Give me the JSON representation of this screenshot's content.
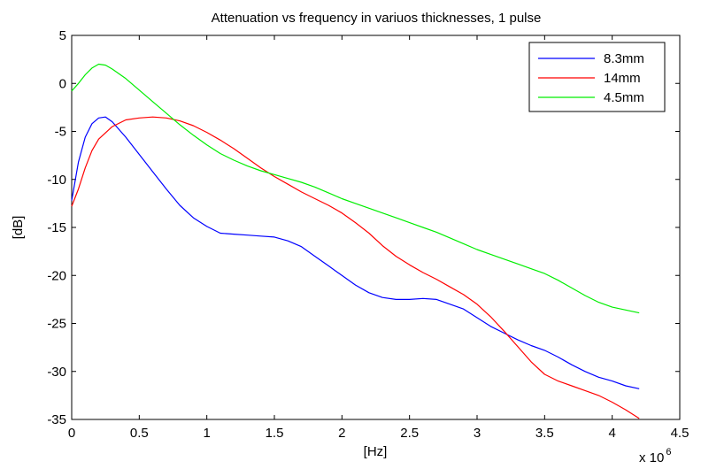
{
  "chart_data": {
    "type": "line",
    "title": "Attenuation vs frequency in variuos thicknesses, 1 pulse",
    "xlabel": "[Hz]",
    "ylabel": "[dB]",
    "x_multiplier": "x 10",
    "x_multiplier_exponent": "6",
    "xlim": [
      0,
      4.5
    ],
    "ylim": [
      -35,
      5
    ],
    "xticks": [
      "0",
      "0.5",
      "1",
      "1.5",
      "2",
      "2.5",
      "3",
      "3.5",
      "4",
      "4.5"
    ],
    "yticks": [
      "5",
      "0",
      "-5",
      "-10",
      "-15",
      "-20",
      "-25",
      "-30",
      "-35"
    ],
    "grid": false,
    "legend_position": "top-right",
    "series": [
      {
        "name": "8.3mm",
        "color": "#0000ff",
        "x": [
          0,
          0.05,
          0.1,
          0.15,
          0.2,
          0.25,
          0.3,
          0.4,
          0.5,
          0.6,
          0.7,
          0.8,
          0.9,
          1.0,
          1.1,
          1.2,
          1.3,
          1.4,
          1.5,
          1.6,
          1.7,
          1.8,
          1.9,
          2.0,
          2.1,
          2.2,
          2.3,
          2.4,
          2.5,
          2.6,
          2.7,
          2.8,
          2.9,
          3.0,
          3.1,
          3.2,
          3.3,
          3.4,
          3.5,
          3.6,
          3.7,
          3.8,
          3.9,
          4.0,
          4.1,
          4.2
        ],
        "y": [
          -12.2,
          -8.2,
          -5.6,
          -4.2,
          -3.6,
          -3.5,
          -4.0,
          -5.6,
          -7.4,
          -9.2,
          -11.0,
          -12.7,
          -14.0,
          -14.9,
          -15.6,
          -15.7,
          -15.8,
          -15.9,
          -16.0,
          -16.4,
          -17.0,
          -18.0,
          -19.0,
          -20.0,
          -21.0,
          -21.8,
          -22.3,
          -22.5,
          -22.5,
          -22.4,
          -22.5,
          -23.0,
          -23.5,
          -24.4,
          -25.3,
          -26.0,
          -26.7,
          -27.3,
          -27.8,
          -28.5,
          -29.3,
          -30.0,
          -30.6,
          -31.0,
          -31.5,
          -31.8
        ]
      },
      {
        "name": "14mm",
        "color": "#ff0000",
        "x": [
          0,
          0.05,
          0.1,
          0.15,
          0.2,
          0.3,
          0.4,
          0.5,
          0.6,
          0.7,
          0.8,
          0.9,
          1.0,
          1.1,
          1.2,
          1.3,
          1.4,
          1.5,
          1.6,
          1.7,
          1.8,
          1.9,
          2.0,
          2.1,
          2.2,
          2.3,
          2.4,
          2.5,
          2.6,
          2.7,
          2.8,
          2.9,
          3.0,
          3.1,
          3.2,
          3.3,
          3.4,
          3.5,
          3.6,
          3.7,
          3.8,
          3.9,
          4.0,
          4.1,
          4.2
        ],
        "y": [
          -12.8,
          -11.0,
          -8.8,
          -7.0,
          -5.8,
          -4.5,
          -3.8,
          -3.6,
          -3.5,
          -3.6,
          -3.9,
          -4.4,
          -5.1,
          -5.9,
          -6.8,
          -7.8,
          -8.8,
          -9.7,
          -10.5,
          -11.3,
          -12.0,
          -12.7,
          -13.5,
          -14.5,
          -15.6,
          -16.9,
          -18.0,
          -18.9,
          -19.7,
          -20.4,
          -21.2,
          -22.0,
          -23.0,
          -24.3,
          -25.8,
          -27.4,
          -29.0,
          -30.3,
          -31.0,
          -31.5,
          -32.0,
          -32.5,
          -33.2,
          -34.0,
          -34.9
        ]
      },
      {
        "name": "4.5mm",
        "color": "#00ee00",
        "x": [
          0,
          0.05,
          0.1,
          0.15,
          0.2,
          0.25,
          0.3,
          0.4,
          0.5,
          0.6,
          0.7,
          0.8,
          0.9,
          1.0,
          1.1,
          1.2,
          1.3,
          1.4,
          1.5,
          1.6,
          1.7,
          1.8,
          1.9,
          2.0,
          2.1,
          2.2,
          2.3,
          2.4,
          2.5,
          2.6,
          2.7,
          2.8,
          2.9,
          3.0,
          3.1,
          3.2,
          3.3,
          3.4,
          3.5,
          3.6,
          3.7,
          3.8,
          3.9,
          4.0,
          4.1,
          4.2
        ],
        "y": [
          -0.8,
          0.0,
          0.9,
          1.6,
          2.0,
          1.9,
          1.5,
          0.5,
          -0.7,
          -1.9,
          -3.1,
          -4.3,
          -5.4,
          -6.4,
          -7.3,
          -8.0,
          -8.6,
          -9.1,
          -9.5,
          -9.9,
          -10.3,
          -10.8,
          -11.4,
          -12.0,
          -12.5,
          -13.0,
          -13.5,
          -14.0,
          -14.5,
          -15.0,
          -15.5,
          -16.1,
          -16.7,
          -17.3,
          -17.8,
          -18.3,
          -18.8,
          -19.3,
          -19.8,
          -20.5,
          -21.3,
          -22.1,
          -22.8,
          -23.3,
          -23.6,
          -23.9
        ]
      }
    ]
  }
}
